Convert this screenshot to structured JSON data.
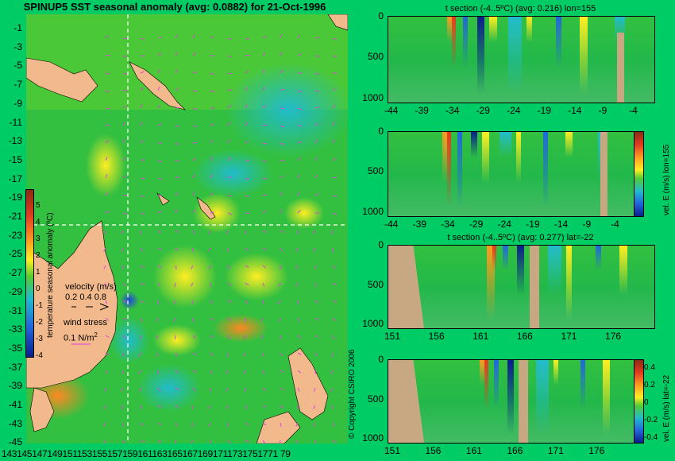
{
  "map": {
    "title": "SPINUP5 SST seasonal anomaly (avg: 0.0882) for 21-Oct-1996",
    "y_ticks": [
      "-1",
      "-3",
      "-5",
      "-7",
      "-9",
      "-11",
      "-13",
      "-15",
      "-17",
      "-19",
      "-21",
      "-23",
      "-25",
      "-27",
      "-29",
      "-31",
      "-33",
      "-35",
      "-37",
      "-39",
      "-41",
      "-43",
      "-45"
    ],
    "x_ticks_text": "1431451471491511531551571591611631651671691711731751771 79",
    "colorbar_label": "temperature seasonal anomaly (ºC)",
    "colorbar_ticks": [
      "5",
      "4",
      "3",
      "2",
      "1",
      "0",
      "-1",
      "-2",
      "-3",
      "-4"
    ],
    "velocity_label": "velocity (m/s)",
    "velocity_values": "0.2 0.4 0.8",
    "wind_label": "wind stress",
    "wind_value": "0.1 N/m",
    "wind_exp": "2",
    "copyright": "© Copyright CSIRO 2006"
  },
  "panels": [
    {
      "title": "t section (-4..5ºC) (avg: 0.216) lon=155",
      "x_ticks": [
        "-44",
        "-39",
        "-34",
        "-29",
        "-24",
        "-19",
        "-14",
        "-9",
        "-4"
      ],
      "y_ticks": [
        "0",
        "500",
        "1000"
      ]
    },
    {
      "title": "",
      "x_ticks": [
        "-44",
        "-39",
        "-34",
        "-29",
        "-24",
        "-19",
        "-14",
        "-9",
        "-4"
      ],
      "y_ticks": [
        "0",
        "500",
        "1000"
      ],
      "side_label": "vel. E (m/s) lon=155"
    },
    {
      "title": "t section (-4..5ºC) (avg: 0.277) lat=-22",
      "x_ticks": [
        "151",
        "156",
        "161",
        "166",
        "171",
        "176"
      ],
      "y_ticks": [
        "0",
        "500",
        "1000"
      ]
    },
    {
      "title": "",
      "x_ticks": [
        "151",
        "156",
        "161",
        "166",
        "171",
        "176"
      ],
      "y_ticks": [
        "0",
        "500",
        "1000"
      ],
      "side_label": "vel. E (m/s) lat=-22"
    }
  ],
  "right_colorbar_ticks": [
    "0.4",
    "0.2",
    "0",
    "-0.2",
    "-0.4"
  ],
  "colors": {
    "land": "#f2b98c",
    "ocean": "#22b84a",
    "background": "#00cc66",
    "vector": "#e040e0"
  }
}
